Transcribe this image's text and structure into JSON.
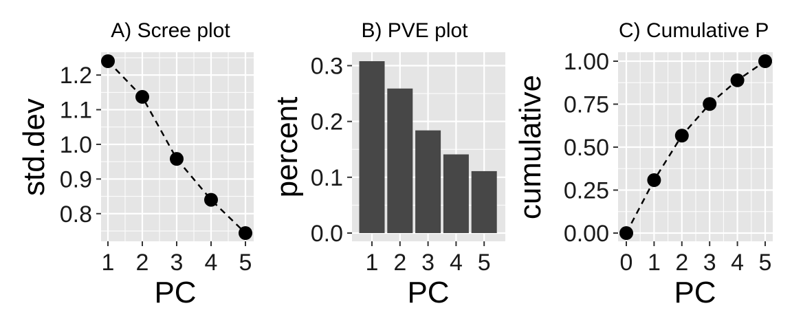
{
  "colors": {
    "panel_bg": "#e5e5e5",
    "grid": "#ffffff",
    "bar": "#474747",
    "point": "#000000",
    "line": "#000000"
  },
  "chart_data": [
    {
      "type": "line",
      "title": "A) Scree plot",
      "xlabel": "PC",
      "ylabel": "std.dev",
      "x": [
        1,
        2,
        3,
        4,
        5
      ],
      "values": [
        1.24,
        1.137,
        0.958,
        0.84,
        0.744
      ],
      "xlim": [
        1,
        5
      ],
      "ylim": [
        0.744,
        1.24
      ],
      "xticks": [
        "1",
        "2",
        "3",
        "4",
        "5"
      ],
      "yticks": [
        "0.8",
        "0.9",
        "1.0",
        "1.1",
        "1.2"
      ],
      "markers": true,
      "line_style": "dashed",
      "grid": true
    },
    {
      "type": "bar",
      "title": "B) PVE plot",
      "xlabel": "PC",
      "ylabel": "percent",
      "categories": [
        "1",
        "2",
        "3",
        "4",
        "5"
      ],
      "values": [
        0.308,
        0.259,
        0.184,
        0.141,
        0.111
      ],
      "ylim": [
        0,
        0.308
      ],
      "yticks": [
        "0.0",
        "0.1",
        "0.2",
        "0.3"
      ],
      "grid": true
    },
    {
      "type": "line",
      "title": "C) Cumulative P",
      "xlabel": "PC",
      "ylabel": "cumulative",
      "x": [
        0,
        1,
        2,
        3,
        4,
        5
      ],
      "values": [
        0.0,
        0.308,
        0.567,
        0.751,
        0.889,
        1.0
      ],
      "xlim": [
        0,
        5
      ],
      "ylim": [
        0,
        1
      ],
      "xticks": [
        "0",
        "1",
        "2",
        "3",
        "4",
        "5"
      ],
      "yticks": [
        "0.00",
        "0.25",
        "0.50",
        "0.75",
        "1.00"
      ],
      "markers": true,
      "line_style": "dashed",
      "grid": true
    }
  ]
}
